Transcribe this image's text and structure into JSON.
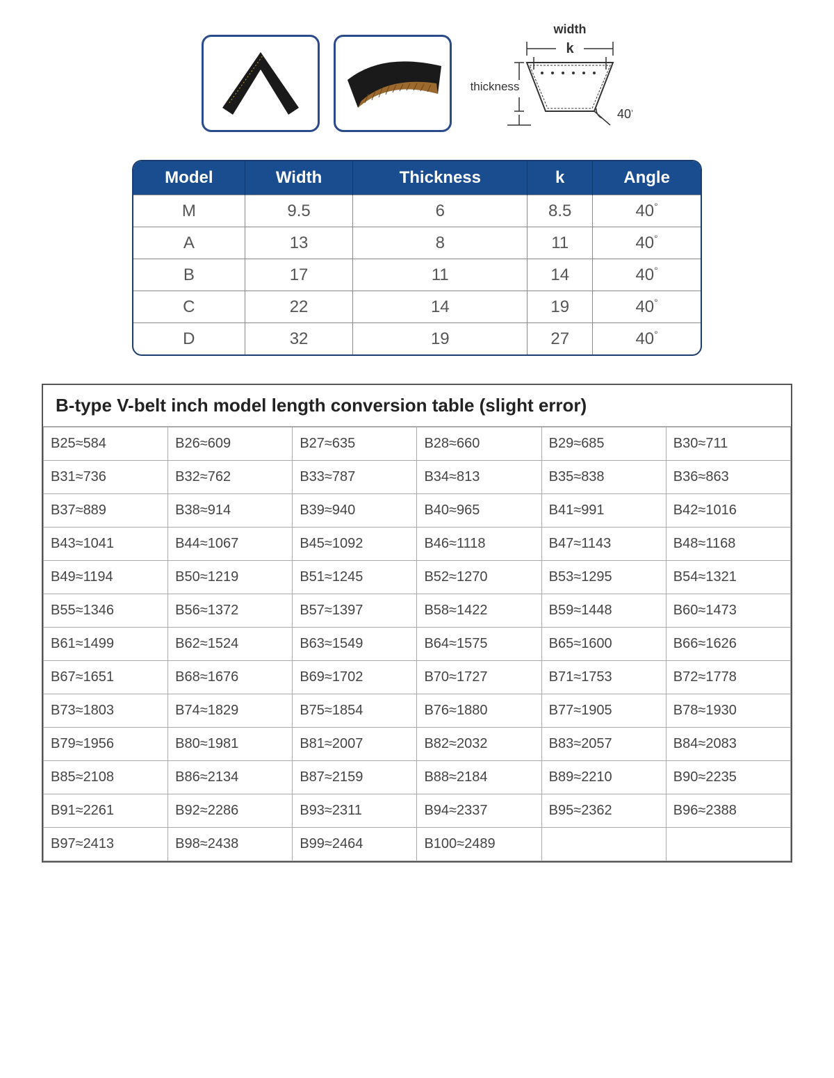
{
  "diagram": {
    "label_width": "width",
    "label_k": "k",
    "label_thickness": "thickness",
    "label_angle": "40°"
  },
  "spec": {
    "headers": [
      "Model",
      "Width",
      "Thickness",
      "k",
      "Angle"
    ],
    "rows": [
      [
        "M",
        "9.5",
        "6",
        "8.5",
        "40"
      ],
      [
        "A",
        "13",
        "8",
        "11",
        "40"
      ],
      [
        "B",
        "17",
        "11",
        "14",
        "40"
      ],
      [
        "C",
        "22",
        "14",
        "19",
        "40"
      ],
      [
        "D",
        "32",
        "19",
        "27",
        "40"
      ]
    ],
    "header_bg": "#1a4d8f",
    "header_fg": "#ffffff",
    "border_color": "#1a3d6d"
  },
  "conv": {
    "title": "B-type V-belt inch model length conversion table (slight error)",
    "title_prefix_bold": "B",
    "rows": [
      [
        "B25≈584",
        "B26≈609",
        "B27≈635",
        "B28≈660",
        "B29≈685",
        "B30≈711"
      ],
      [
        "B31≈736",
        "B32≈762",
        "B33≈787",
        "B34≈813",
        "B35≈838",
        "B36≈863"
      ],
      [
        "B37≈889",
        "B38≈914",
        "B39≈940",
        "B40≈965",
        "B41≈991",
        "B42≈1016"
      ],
      [
        "B43≈1041",
        "B44≈1067",
        "B45≈1092",
        "B46≈1118",
        "B47≈1143",
        "B48≈1168"
      ],
      [
        "B49≈1194",
        "B50≈1219",
        "B51≈1245",
        "B52≈1270",
        "B53≈1295",
        "B54≈1321"
      ],
      [
        "B55≈1346",
        "B56≈1372",
        "B57≈1397",
        "B58≈1422",
        "B59≈1448",
        "B60≈1473"
      ],
      [
        "B61≈1499",
        "B62≈1524",
        "B63≈1549",
        "B64≈1575",
        "B65≈1600",
        "B66≈1626"
      ],
      [
        "B67≈1651",
        "B68≈1676",
        "B69≈1702",
        "B70≈1727",
        "B71≈1753",
        "B72≈1778"
      ],
      [
        "B73≈1803",
        "B74≈1829",
        "B75≈1854",
        "B76≈1880",
        "B77≈1905",
        "B78≈1930"
      ],
      [
        "B79≈1956",
        "B80≈1981",
        "B81≈2007",
        "B82≈2032",
        "B83≈2057",
        "B84≈2083"
      ],
      [
        "B85≈2108",
        "B86≈2134",
        "B87≈2159",
        "B88≈2184",
        "B89≈2210",
        "B90≈2235"
      ],
      [
        "B91≈2261",
        "B92≈2286",
        "B93≈2311",
        "B94≈2337",
        "B95≈2362",
        "B96≈2388"
      ],
      [
        "B97≈2413",
        "B98≈2438",
        "B99≈2464",
        "B100≈2489",
        "",
        ""
      ]
    ]
  }
}
